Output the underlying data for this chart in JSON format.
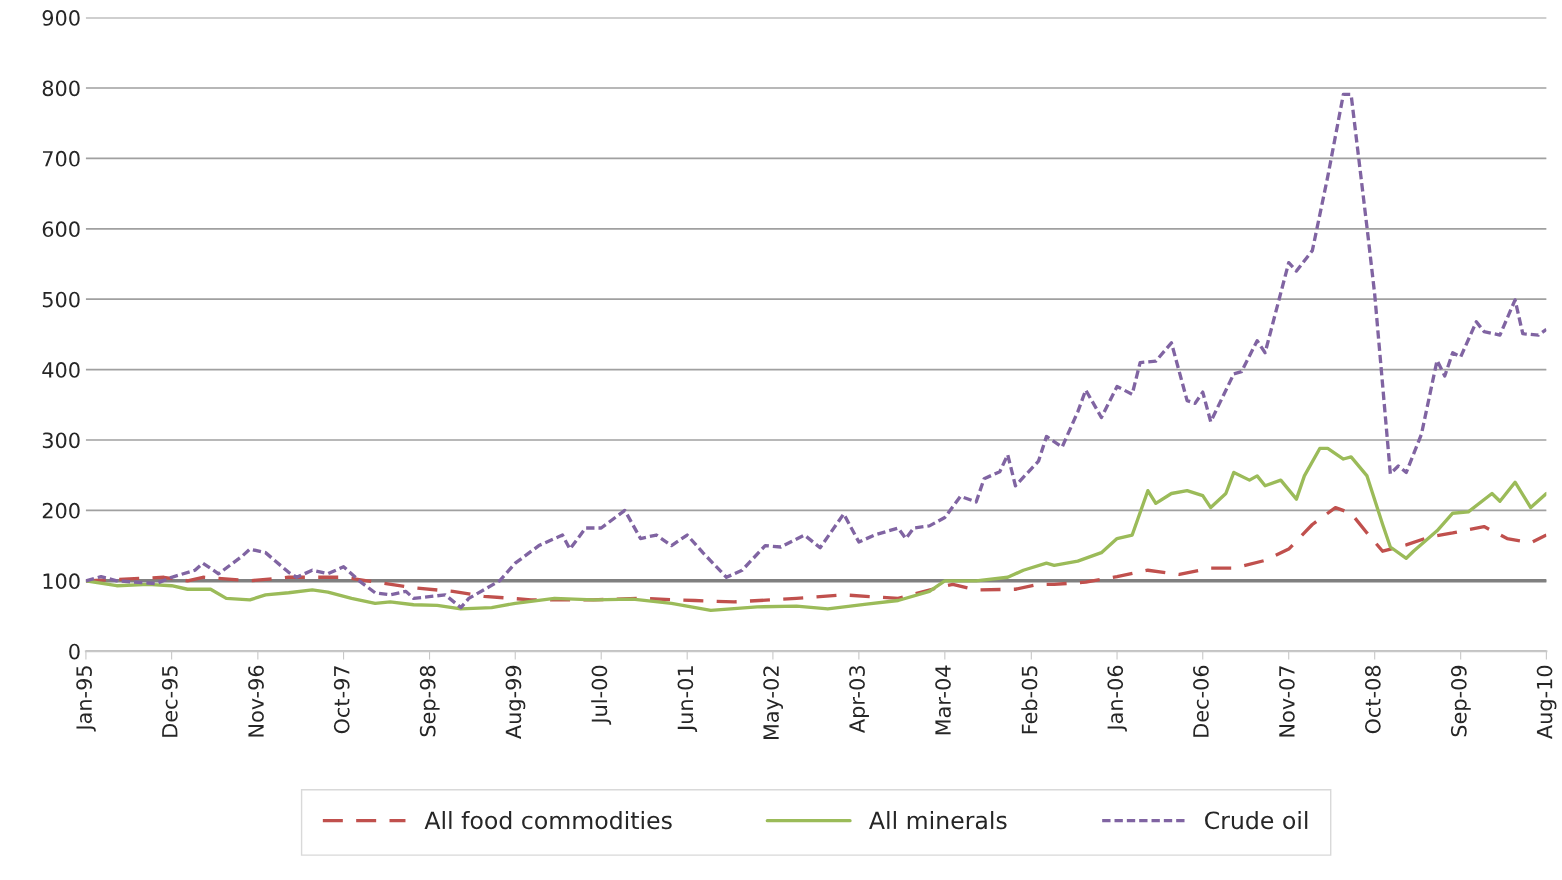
{
  "chart_data": {
    "type": "line",
    "xlim": [
      "1995-01",
      "2010-08"
    ],
    "xticks": [
      {
        "value": "1995-01",
        "label": "Jan-95"
      },
      {
        "value": "1995-12",
        "label": "Dec-95"
      },
      {
        "value": "1996-11",
        "label": "Nov-96"
      },
      {
        "value": "1997-10",
        "label": "Oct-97"
      },
      {
        "value": "1998-09",
        "label": "Sep-98"
      },
      {
        "value": "1999-08",
        "label": "Aug-99"
      },
      {
        "value": "2000-07",
        "label": "Jul-00"
      },
      {
        "value": "2001-06",
        "label": "Jun-01"
      },
      {
        "value": "2002-05",
        "label": "May-02"
      },
      {
        "value": "2003-04",
        "label": "Apr-03"
      },
      {
        "value": "2004-03",
        "label": "Mar-04"
      },
      {
        "value": "2005-02",
        "label": "Feb-05"
      },
      {
        "value": "2006-01",
        "label": "Jan-06"
      },
      {
        "value": "2006-12",
        "label": "Dec-06"
      },
      {
        "value": "2007-11",
        "label": "Nov-07"
      },
      {
        "value": "2008-10",
        "label": "Oct-08"
      },
      {
        "value": "2009-09",
        "label": "Sep-09"
      },
      {
        "value": "2010-08",
        "label": "Aug-10"
      }
    ],
    "ylim": [
      0,
      900
    ],
    "yticks": [
      0,
      100,
      200,
      300,
      400,
      500,
      600,
      700,
      800,
      900
    ],
    "grid": "y",
    "legend": "bottom",
    "ref_lines": [
      {
        "axis": "y",
        "value": 100,
        "color": "#808080"
      }
    ],
    "series": [
      {
        "name": "All food commodities",
        "color": "#c0504d",
        "line_style": "dashed",
        "x": [
          "1995-01",
          "1995-11",
          "1996-02",
          "1996-04",
          "1996-10",
          "1997-03",
          "1997-10",
          "1998-01",
          "1998-07",
          "1998-12",
          "1999-04",
          "1999-10",
          "2000-06",
          "2000-12",
          "2001-07",
          "2001-12",
          "2002-08",
          "2003-02",
          "2003-09",
          "2004-02",
          "2004-04",
          "2004-07",
          "2004-12",
          "2005-03",
          "2005-05",
          "2005-09",
          "2006-01",
          "2006-05",
          "2006-09",
          "2007-01",
          "2007-04",
          "2007-08",
          "2007-11",
          "2008-02",
          "2008-05",
          "2008-07",
          "2008-09",
          "2008-11",
          "2009-02",
          "2009-05",
          "2009-08",
          "2009-12",
          "2010-03",
          "2010-06",
          "2010-08"
        ],
        "values": [
          100,
          105,
          100,
          105,
          100,
          105,
          105,
          100,
          90,
          85,
          78,
          73,
          73,
          75,
          72,
          70,
          75,
          80,
          75,
          90,
          95,
          87,
          88,
          95,
          95,
          98,
          106,
          115,
          109,
          118,
          118,
          129,
          145,
          180,
          204,
          196,
          168,
          142,
          151,
          162,
          168,
          177,
          160,
          154,
          165
        ]
      },
      {
        "name": "All minerals",
        "color": "#9bbb59",
        "line_style": "solid",
        "x": [
          "1995-01",
          "1995-05",
          "1995-09",
          "1995-12",
          "1996-02",
          "1996-05",
          "1996-07",
          "1996-10",
          "1996-12",
          "1997-03",
          "1997-06",
          "1997-08",
          "1997-11",
          "1998-02",
          "1998-04",
          "1998-07",
          "1998-10",
          "1999-01",
          "1999-05",
          "1999-08",
          "2000-01",
          "2000-06",
          "2000-11",
          "2001-04",
          "2001-09",
          "2002-03",
          "2002-08",
          "2002-12",
          "2003-05",
          "2003-09",
          "2004-01",
          "2004-03",
          "2004-07",
          "2004-11",
          "2005-01",
          "2005-04",
          "2005-05",
          "2005-08",
          "2005-11",
          "2006-01",
          "2006-03",
          "2006-05",
          "2006-06",
          "2006-08",
          "2006-10",
          "2006-12",
          "2007-01",
          "2007-03",
          "2007-04",
          "2007-06",
          "2007-07",
          "2007-08",
          "2007-10",
          "2007-12",
          "2008-01",
          "2008-03",
          "2008-04",
          "2008-06",
          "2008-07",
          "2008-09",
          "2008-11",
          "2008-12",
          "2009-02",
          "2009-03",
          "2009-06",
          "2009-08",
          "2009-10",
          "2010-01",
          "2010-02",
          "2010-04",
          "2010-06",
          "2010-08"
        ],
        "values": [
          100,
          93,
          95,
          93,
          88,
          88,
          75,
          73,
          80,
          83,
          87,
          84,
          75,
          68,
          70,
          66,
          65,
          60,
          62,
          68,
          75,
          73,
          74,
          68,
          58,
          63,
          64,
          60,
          67,
          72,
          85,
          100,
          100,
          105,
          115,
          125,
          122,
          128,
          140,
          160,
          165,
          228,
          210,
          224,
          228,
          221,
          204,
          224,
          254,
          243,
          249,
          235,
          243,
          216,
          249,
          288,
          288,
          273,
          276,
          249,
          180,
          148,
          132,
          142,
          171,
          196,
          198,
          224,
          213,
          240,
          204,
          224
        ]
      },
      {
        "name": "Crude oil",
        "color": "#8064a2",
        "line_style": "dotted",
        "x": [
          "1995-01",
          "1995-03",
          "1995-05",
          "1995-10",
          "1995-12",
          "1996-03",
          "1996-04",
          "1996-06",
          "1996-09",
          "1996-10",
          "1996-12",
          "1997-03",
          "1997-04",
          "1997-06",
          "1997-08",
          "1997-10",
          "1997-12",
          "1998-02",
          "1998-04",
          "1998-06",
          "1998-07",
          "1998-11",
          "1999-01",
          "1999-02",
          "1999-06",
          "1999-08",
          "1999-11",
          "2000-02",
          "2000-03",
          "2000-05",
          "2000-07",
          "2000-10",
          "2000-12",
          "2001-02",
          "2001-04",
          "2001-06",
          "2001-08",
          "2001-11",
          "2002-01",
          "2002-04",
          "2002-06",
          "2002-09",
          "2002-11",
          "2003-02",
          "2003-04",
          "2003-06",
          "2003-09",
          "2003-10",
          "2003-11",
          "2004-01",
          "2004-03",
          "2004-05",
          "2004-07",
          "2004-08",
          "2004-10",
          "2004-11",
          "2004-12",
          "2005-03",
          "2005-04",
          "2005-06",
          "2005-08",
          "2005-09",
          "2005-11",
          "2006-01",
          "2006-03",
          "2006-04",
          "2006-06",
          "2006-08",
          "2006-10",
          "2006-11",
          "2006-12",
          "2007-01",
          "2007-04",
          "2007-05",
          "2007-07",
          "2007-08",
          "2007-11",
          "2007-12",
          "2008-02",
          "2008-04",
          "2008-06",
          "2008-07",
          "2008-09",
          "2008-10",
          "2008-12",
          "2009-01",
          "2009-02",
          "2009-04",
          "2009-06",
          "2009-07",
          "2009-08",
          "2009-09",
          "2009-11",
          "2009-12",
          "2010-02",
          "2010-04",
          "2010-05",
          "2010-07",
          "2010-08"
        ],
        "values": [
          100,
          106,
          100,
          96,
          105,
          115,
          125,
          110,
          135,
          145,
          140,
          112,
          105,
          115,
          110,
          120,
          100,
          83,
          80,
          85,
          75,
          80,
          62,
          75,
          100,
          125,
          150,
          165,
          145,
          175,
          175,
          200,
          160,
          165,
          150,
          165,
          140,
          105,
          115,
          150,
          148,
          165,
          147,
          195,
          155,
          165,
          175,
          160,
          175,
          178,
          190,
          220,
          212,
          245,
          255,
          279,
          235,
          270,
          305,
          290,
          340,
          371,
          332,
          376,
          365,
          410,
          412,
          438,
          356,
          352,
          368,
          326,
          394,
          397,
          441,
          424,
          552,
          540,
          569,
          674,
          791,
          791,
          602,
          507,
          252,
          263,
          254,
          308,
          413,
          391,
          424,
          418,
          468,
          454,
          449,
          499,
          451,
          449,
          457
        ]
      }
    ]
  }
}
